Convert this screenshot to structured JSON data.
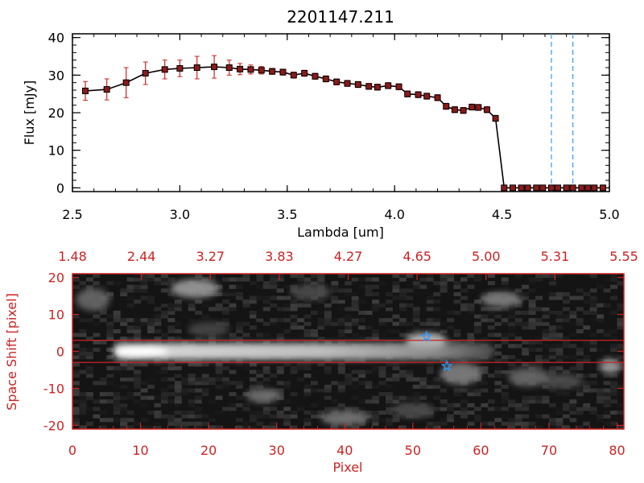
{
  "colors": {
    "spectrum_line": "#000000",
    "spectrum_marker": "#8b1a1a",
    "errorbar": "#cc2222",
    "guide_dashed": "#3399ff",
    "panel_accent": "#cc2222",
    "marker_star": "#3399ff"
  },
  "chart_data": [
    {
      "type": "line",
      "title": "2201147.211",
      "xlabel": "Lambda [um]",
      "ylabel": "Flux [mJy]",
      "xlim": [
        2.5,
        5.0
      ],
      "ylim": [
        -1,
        41
      ],
      "xticks": [
        "2.5",
        "3.0",
        "3.5",
        "4.0",
        "4.5",
        "5.0"
      ],
      "yticks": [
        "0",
        "10",
        "20",
        "30",
        "40"
      ],
      "grid": false,
      "series": [
        {
          "x": [
            2.56,
            2.66,
            2.75,
            2.84,
            2.93,
            3.0,
            3.08,
            3.16,
            3.23,
            3.28,
            3.33,
            3.38,
            3.43,
            3.48,
            3.53,
            3.58,
            3.63,
            3.68,
            3.73,
            3.78,
            3.83,
            3.88,
            3.92,
            3.97,
            4.02,
            4.06,
            4.11,
            4.15,
            4.2,
            4.24,
            4.28,
            4.32,
            4.36,
            4.39,
            4.43,
            4.47,
            4.51,
            4.55,
            4.59,
            4.62,
            4.66,
            4.69,
            4.73,
            4.76,
            4.8,
            4.83,
            4.87,
            4.9,
            4.93,
            4.97
          ],
          "values": [
            25.8,
            26.2,
            28.0,
            30.5,
            31.5,
            31.8,
            32.0,
            32.2,
            32.0,
            31.6,
            31.5,
            31.3,
            31.0,
            30.8,
            30.0,
            30.5,
            29.7,
            29.0,
            28.2,
            27.8,
            27.5,
            27.0,
            26.8,
            27.2,
            26.9,
            25.0,
            24.8,
            24.4,
            24.0,
            21.7,
            20.8,
            20.6,
            21.5,
            21.4,
            20.8,
            18.5,
            0,
            0,
            0,
            0,
            0,
            0,
            0,
            0,
            0,
            0,
            0,
            0,
            0,
            0
          ],
          "errors": [
            2.5,
            2.8,
            4.0,
            3.0,
            2.5,
            2.2,
            3.0,
            3.0,
            2.0,
            1.5,
            1.2,
            1.0,
            0.8,
            0.8,
            0.8,
            0.8,
            0.8,
            0.8,
            0.8,
            0.8,
            0.8,
            0.8,
            0.8,
            0.8,
            0.8,
            0.8,
            0.8,
            0.8,
            0.8,
            0.8,
            0.8,
            0.8,
            0.8,
            0.8,
            0.8,
            0.8,
            0,
            0,
            0,
            0,
            0,
            0,
            0,
            0,
            0,
            0,
            0,
            0,
            0,
            0
          ]
        }
      ],
      "vlines": [
        4.73,
        4.83
      ]
    },
    {
      "type": "heatmap",
      "xlabel": "Pixel",
      "ylabel": "Space Shift [pixel]",
      "xlim": [
        0,
        81
      ],
      "ylim": [
        -21,
        21
      ],
      "xticks": [
        "0",
        "10",
        "20",
        "30",
        "40",
        "50",
        "60",
        "70",
        "80"
      ],
      "yticks": [
        "-20",
        "-10",
        "0",
        "10",
        "20"
      ],
      "top_ticks": [
        "1.48",
        "2.44",
        "3.27",
        "3.83",
        "4.27",
        "4.65",
        "5.00",
        "5.31",
        "5.55"
      ],
      "hlines": [
        3,
        -3
      ],
      "stars": [
        {
          "x": 52,
          "y": 4
        },
        {
          "x": 55,
          "y": -4
        }
      ],
      "blobs": [
        {
          "x": 18,
          "y": 17,
          "sx": 3.5,
          "sy": 2.5,
          "a": 0.45
        },
        {
          "x": 63,
          "y": 14,
          "sx": 3.0,
          "sy": 2.0,
          "a": 0.35
        },
        {
          "x": 35,
          "y": 16,
          "sx": 3.0,
          "sy": 2.0,
          "a": 0.15
        },
        {
          "x": 28,
          "y": -12,
          "sx": 2.5,
          "sy": 1.8,
          "a": 0.3
        },
        {
          "x": 40,
          "y": -18,
          "sx": 3.5,
          "sy": 2.0,
          "a": 0.3
        },
        {
          "x": 3,
          "y": 14,
          "sx": 2.5,
          "sy": 3.0,
          "a": 0.25
        },
        {
          "x": 50,
          "y": -16,
          "sx": 3.0,
          "sy": 2.0,
          "a": 0.15
        },
        {
          "x": 72,
          "y": -8,
          "sx": 3.0,
          "sy": 2.0,
          "a": 0.15
        },
        {
          "x": 79,
          "y": -4,
          "sx": 1.5,
          "sy": 2.0,
          "a": 0.45
        },
        {
          "x": 57,
          "y": -6,
          "sx": 3.0,
          "sy": 3.0,
          "a": 0.35
        },
        {
          "x": 67,
          "y": -7,
          "sx": 3.0,
          "sy": 2.5,
          "a": 0.25
        },
        {
          "x": 20,
          "y": 6,
          "sx": 3.0,
          "sy": 2.0,
          "a": 0.12
        }
      ],
      "trace": {
        "x_start": 6,
        "x_end": 62,
        "y": 0,
        "sy": 2.2,
        "x_peak": 10
      }
    }
  ]
}
